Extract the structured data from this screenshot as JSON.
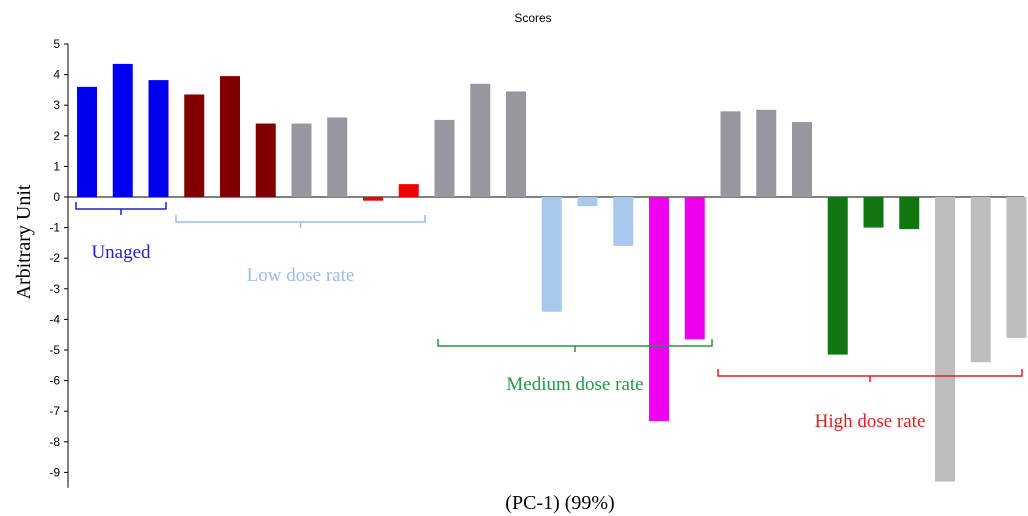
{
  "chart_data": {
    "type": "bar",
    "title": "Scores",
    "xlabel": "(PC-1) (99%)",
    "ylabel": "Arbitrary Unit",
    "ylim": [
      -9.5,
      5
    ],
    "yticks": [
      5,
      4,
      3,
      2,
      1,
      0,
      -1,
      -2,
      -3,
      -4,
      -5,
      -6,
      -7,
      -8,
      -9
    ],
    "grid": false,
    "values": [
      3.6,
      4.35,
      3.82,
      3.35,
      3.95,
      2.4,
      2.4,
      2.6,
      -0.12,
      0.42,
      2.52,
      3.7,
      3.45,
      -3.75,
      -0.3,
      -1.6,
      -7.32,
      -4.65,
      2.8,
      2.85,
      2.45,
      -5.15,
      -1.0,
      -1.05,
      -9.3,
      -5.4,
      -4.6
    ],
    "colors": [
      "#0000ee",
      "#0000ee",
      "#0000ee",
      "#800000",
      "#800000",
      "#800000",
      "#97979f",
      "#97979f",
      "#ee0000",
      "#ee0000",
      "#97979f",
      "#97979f",
      "#97979f",
      "#a8c8ee",
      "#a8c8ee",
      "#a8c8ee",
      "#ee00ee",
      "#ee00ee",
      "#97979f",
      "#97979f",
      "#97979f",
      "#117711",
      "#117711",
      "#117711",
      "#bdbdbd",
      "#bdbdbd",
      "#bdbdbd"
    ],
    "groups": [
      {
        "label": "Unaged",
        "color": "#2222cc",
        "from": 0,
        "to": 2,
        "position": "below"
      },
      {
        "label": "Low dose rate",
        "color": "#9bbce8",
        "from": 3,
        "to": 9,
        "position": "below"
      },
      {
        "label": "Medium dose rate",
        "color": "#229944",
        "from": 10,
        "to": 17,
        "position": "below"
      },
      {
        "label": "High dose rate",
        "color": "#dd2222",
        "from": 18,
        "to": 26,
        "position": "below"
      }
    ]
  }
}
